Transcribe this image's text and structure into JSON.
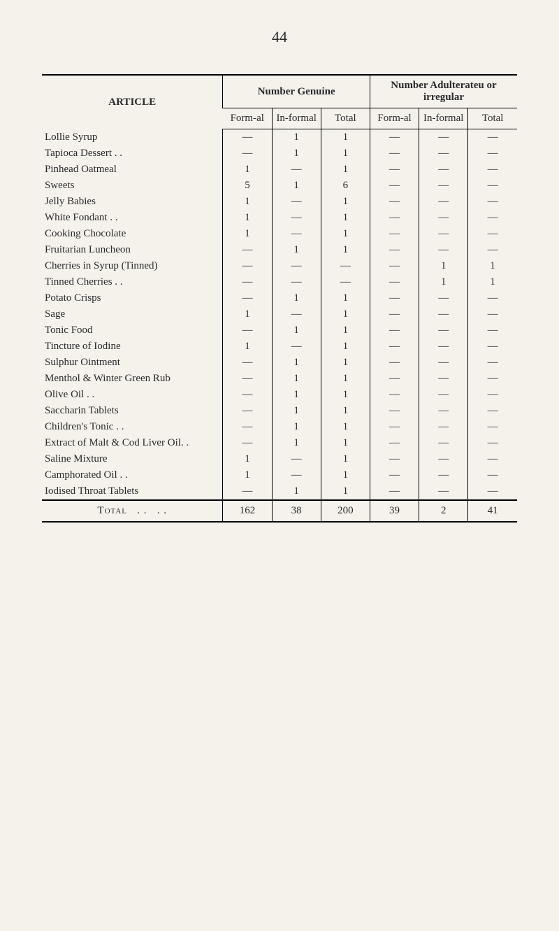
{
  "page_number": "44",
  "dash": "—",
  "headers": {
    "article": "ARTICLE",
    "genuine": "Number Genuine",
    "adulterated": "Number Adulterateu or irregular",
    "formal": "Form-al",
    "informal": "In-formal",
    "total": "Total"
  },
  "rows": [
    {
      "article": "Lollie Syrup",
      "gf": "—",
      "gi": "1",
      "gt": "1",
      "af": "—",
      "ai": "—",
      "at": "—"
    },
    {
      "article": "Tapioca Dessert . .",
      "gf": "—",
      "gi": "1",
      "gt": "1",
      "af": "—",
      "ai": "—",
      "at": "—"
    },
    {
      "article": "Pinhead Oatmeal",
      "gf": "1",
      "gi": "—",
      "gt": "1",
      "af": "—",
      "ai": "—",
      "at": "—"
    },
    {
      "article": "Sweets",
      "gf": "5",
      "gi": "1",
      "gt": "6",
      "af": "—",
      "ai": "—",
      "at": "—"
    },
    {
      "article": "Jelly Babies",
      "gf": "1",
      "gi": "—",
      "gt": "1",
      "af": "—",
      "ai": "—",
      "at": "—"
    },
    {
      "article": "White Fondant . .",
      "gf": "1",
      "gi": "—",
      "gt": "1",
      "af": "—",
      "ai": "—",
      "at": "—"
    },
    {
      "article": "Cooking Chocolate",
      "gf": "1",
      "gi": "—",
      "gt": "1",
      "af": "—",
      "ai": "—",
      "at": "—"
    },
    {
      "article": "Fruitarian Luncheon",
      "gf": "—",
      "gi": "1",
      "gt": "1",
      "af": "—",
      "ai": "—",
      "at": "—"
    },
    {
      "article": "Cherries in Syrup (Tinned)",
      "gf": "—",
      "gi": "—",
      "gt": "—",
      "af": "—",
      "ai": "1",
      "at": "1"
    },
    {
      "article": "Tinned Cherries . .",
      "gf": "—",
      "gi": "—",
      "gt": "—",
      "af": "—",
      "ai": "1",
      "at": "1"
    },
    {
      "article": "Potato Crisps",
      "gf": "—",
      "gi": "1",
      "gt": "1",
      "af": "—",
      "ai": "—",
      "at": "—"
    },
    {
      "article": "Sage",
      "gf": "1",
      "gi": "—",
      "gt": "1",
      "af": "—",
      "ai": "—",
      "at": "—"
    },
    {
      "article": "Tonic Food",
      "gf": "—",
      "gi": "1",
      "gt": "1",
      "af": "—",
      "ai": "—",
      "at": "—"
    },
    {
      "article": "Tincture of Iodine",
      "gf": "1",
      "gi": "—",
      "gt": "1",
      "af": "—",
      "ai": "—",
      "at": "—"
    },
    {
      "article": "Sulphur Ointment",
      "gf": "—",
      "gi": "1",
      "gt": "1",
      "af": "—",
      "ai": "—",
      "at": "—"
    },
    {
      "article": "Menthol & Winter Green Rub",
      "gf": "—",
      "gi": "1",
      "gt": "1",
      "af": "—",
      "ai": "—",
      "at": "—"
    },
    {
      "article": "Olive Oil . .",
      "gf": "—",
      "gi": "1",
      "gt": "1",
      "af": "—",
      "ai": "—",
      "at": "—"
    },
    {
      "article": "Saccharin Tablets",
      "gf": "—",
      "gi": "1",
      "gt": "1",
      "af": "—",
      "ai": "—",
      "at": "—"
    },
    {
      "article": "Children's Tonic . .",
      "gf": "—",
      "gi": "1",
      "gt": "1",
      "af": "—",
      "ai": "—",
      "at": "—"
    },
    {
      "article": "Extract of Malt & Cod Liver Oil. .",
      "gf": "—",
      "gi": "1",
      "gt": "1",
      "af": "—",
      "ai": "—",
      "at": "—"
    },
    {
      "article": "Saline Mixture",
      "gf": "1",
      "gi": "—",
      "gt": "1",
      "af": "—",
      "ai": "—",
      "at": "—"
    },
    {
      "article": "Camphorated Oil . .",
      "gf": "1",
      "gi": "—",
      "gt": "1",
      "af": "—",
      "ai": "—",
      "at": "—"
    },
    {
      "article": "Iodised Throat Tablets",
      "gf": "—",
      "gi": "1",
      "gt": "1",
      "af": "—",
      "ai": "—",
      "at": "—"
    }
  ],
  "total": {
    "label": "Total",
    "gf": "162",
    "gi": "38",
    "gt": "200",
    "af": "39",
    "ai": "2",
    "at": "41"
  },
  "styling": {
    "background_color": "#f5f2ec",
    "text_color": "#2a2a2a",
    "border_color": "#000000",
    "font_family": "Georgia, Times New Roman, serif",
    "page_number_fontsize": 22,
    "table_fontsize": 15
  }
}
